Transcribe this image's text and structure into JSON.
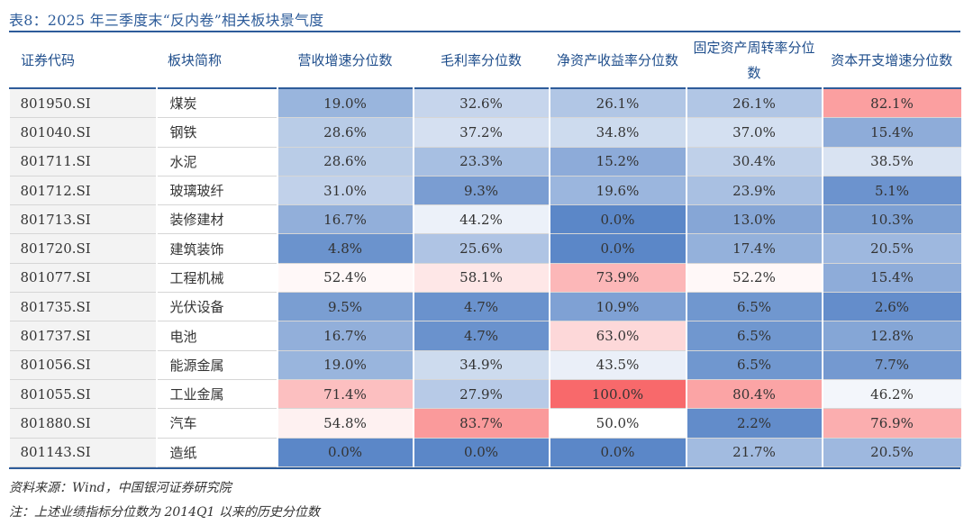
{
  "title": "表8：2025 年三季度末“反内卷”相关板块景气度",
  "columns": [
    {
      "label": "证券代码",
      "align": "left"
    },
    {
      "label": "板块简称",
      "align": "left"
    },
    {
      "label": "营收增速分位数",
      "align": "center"
    },
    {
      "label": "毛利率分位数",
      "align": "center"
    },
    {
      "label": "净资产收益率分位数",
      "align": "center"
    },
    {
      "label": "固定资产周转率分位数",
      "align": "center"
    },
    {
      "label": "资本开支增速分位数",
      "align": "center"
    }
  ],
  "rows": [
    {
      "code": "801950.SI",
      "name": "煤炭",
      "values": [
        "19.0%",
        "32.6%",
        "26.1%",
        "26.1%",
        "82.1%"
      ]
    },
    {
      "code": "801040.SI",
      "name": "钢铁",
      "values": [
        "28.6%",
        "37.2%",
        "34.8%",
        "37.0%",
        "15.4%"
      ]
    },
    {
      "code": "801711.SI",
      "name": "水泥",
      "values": [
        "28.6%",
        "23.3%",
        "15.2%",
        "30.4%",
        "38.5%"
      ]
    },
    {
      "code": "801712.SI",
      "name": "玻璃玻纤",
      "values": [
        "31.0%",
        "9.3%",
        "19.6%",
        "23.9%",
        "5.1%"
      ]
    },
    {
      "code": "801713.SI",
      "name": "装修建材",
      "values": [
        "16.7%",
        "44.2%",
        "0.0%",
        "13.0%",
        "10.3%"
      ]
    },
    {
      "code": "801720.SI",
      "name": "建筑装饰",
      "values": [
        "4.8%",
        "25.6%",
        "0.0%",
        "17.4%",
        "20.5%"
      ]
    },
    {
      "code": "801077.SI",
      "name": "工程机械",
      "values": [
        "52.4%",
        "58.1%",
        "73.9%",
        "52.2%",
        "15.4%"
      ]
    },
    {
      "code": "801735.SI",
      "name": "光伏设备",
      "values": [
        "9.5%",
        "4.7%",
        "10.9%",
        "6.5%",
        "2.6%"
      ]
    },
    {
      "code": "801737.SI",
      "name": "电池",
      "values": [
        "16.7%",
        "4.7%",
        "63.0%",
        "6.5%",
        "12.8%"
      ]
    },
    {
      "code": "801056.SI",
      "name": "能源金属",
      "values": [
        "19.0%",
        "34.9%",
        "43.5%",
        "6.5%",
        "7.7%"
      ]
    },
    {
      "code": "801055.SI",
      "name": "工业金属",
      "values": [
        "71.4%",
        "27.9%",
        "100.0%",
        "80.4%",
        "46.2%"
      ]
    },
    {
      "code": "801880.SI",
      "name": "汽车",
      "values": [
        "54.8%",
        "83.7%",
        "50.0%",
        "2.2%",
        "76.9%"
      ]
    },
    {
      "code": "801143.SI",
      "name": "造纸",
      "values": [
        "0.0%",
        "0.0%",
        "0.0%",
        "21.7%",
        "20.5%"
      ]
    }
  ],
  "source": "资料来源：Wind，中国银河证券研究院",
  "note": "注：上述业绩指标分位数为 2014Q1 以来的历史分位数",
  "colors": {
    "low": "#5B87C8",
    "mid": "#FFFFFF",
    "high": "#F8696B",
    "header_text": "#1F4E8C",
    "rule": "#2E5C9A"
  }
}
